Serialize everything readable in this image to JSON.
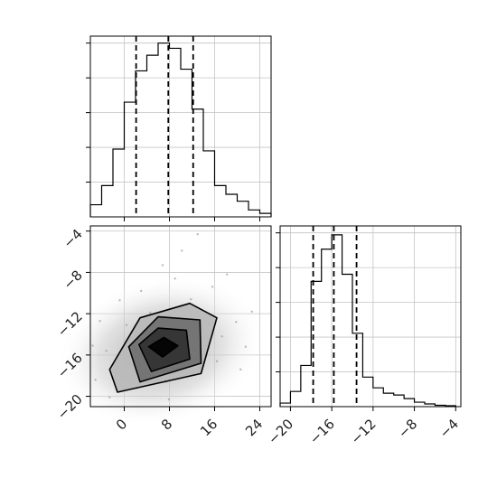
{
  "chart_data": [
    {
      "type": "histogram",
      "panel": "top-left",
      "bin_edges": [
        -6,
        -4,
        -2,
        0,
        2,
        4,
        6,
        8,
        10,
        12,
        14,
        16,
        18,
        20,
        22,
        24,
        26
      ],
      "counts": [
        0.7,
        1.8,
        3.9,
        6.6,
        8.4,
        9.3,
        10.0,
        9.7,
        8.5,
        6.2,
        3.8,
        1.8,
        1.3,
        0.9,
        0.4,
        0.2
      ],
      "quantile_lines": [
        2.1,
        7.8,
        12.2
      ],
      "xlim": [
        -6,
        26
      ],
      "ylim": [
        0,
        10.4
      ],
      "grid": true,
      "y_tick_labels_shown": false
    },
    {
      "type": "histogram",
      "panel": "bottom-right",
      "bin_edges": [
        -21,
        -20,
        -19,
        -18,
        -17,
        -16,
        -15,
        -14,
        -13,
        -12,
        -11,
        -10,
        -9,
        -8,
        -7,
        -6,
        -5,
        -4
      ],
      "counts": [
        0.4,
        1.7,
        4.6,
        14.0,
        17.6,
        19.2,
        14.8,
        8.2,
        3.3,
        2.1,
        1.5,
        1.3,
        0.9,
        0.5,
        0.3,
        0.15,
        0.1
      ],
      "quantile_lines": [
        -17.8,
        -15.8,
        -13.6
      ],
      "xlim": [
        -21,
        -3.5
      ],
      "ylim": [
        0,
        20.2
      ],
      "grid": true,
      "x_ticks": [
        -20,
        -16,
        -12,
        -8,
        -4
      ],
      "x_tick_labels": [
        "−20",
        "−16",
        "−12",
        "−8",
        "−4"
      ],
      "y_tick_labels_shown": false
    },
    {
      "type": "scatter",
      "panel": "bottom-left",
      "style": "2d density scatter with filled contours",
      "center": [
        6.5,
        -15.6
      ],
      "spread": {
        "x_sd": 5.5,
        "y_sd": 2.1,
        "correlation": 0.45
      },
      "points": [
        [
          6.2,
          -15.3
        ],
        [
          8.1,
          -14.9
        ],
        [
          3.4,
          -16.2
        ],
        [
          10.5,
          -14.1
        ],
        [
          1.0,
          -16.8
        ],
        [
          12.7,
          -13.6
        ],
        [
          -1.4,
          -17.3
        ],
        [
          14.9,
          -13.0
        ],
        [
          5.0,
          -17.5
        ],
        [
          9.7,
          -12.4
        ],
        [
          -3.2,
          -15.6
        ],
        [
          17.3,
          -14.2
        ],
        [
          7.4,
          -18.6
        ],
        [
          4.6,
          -11.9
        ],
        [
          19.8,
          -12.8
        ],
        [
          -5.1,
          -18.4
        ],
        [
          11.8,
          -10.6
        ],
        [
          2.2,
          -19.2
        ],
        [
          21.5,
          -15.2
        ],
        [
          0.4,
          -13.1
        ],
        [
          15.6,
          -9.4
        ],
        [
          -2.6,
          -20.1
        ],
        [
          9.0,
          -8.6
        ],
        [
          13.4,
          -17.2
        ],
        [
          22.6,
          -11.8
        ],
        [
          6.8,
          -7.3
        ],
        [
          -4.3,
          -12.7
        ],
        [
          18.2,
          -8.2
        ],
        [
          10.2,
          -5.9
        ],
        [
          3.0,
          -9.8
        ],
        [
          16.4,
          -16.6
        ],
        [
          -0.8,
          -10.7
        ],
        [
          13.0,
          -4.3
        ],
        [
          20.6,
          -17.4
        ],
        [
          7.9,
          -20.3
        ],
        [
          -5.6,
          -15.1
        ]
      ],
      "contours": [
        {
          "level": 1,
          "rings": [
            [
              6.8,
              -16.2
            ],
            [
              9.5,
              -15.1
            ],
            [
              7.0,
              -14.3
            ],
            [
              4.3,
              -15.2
            ],
            [
              6.8,
              -16.2
            ]
          ],
          "fill": "#000000"
        },
        {
          "level": 2,
          "rings": [
            [
              4.8,
              -17.6
            ],
            [
              11.6,
              -16.4
            ],
            [
              11.0,
              -13.6
            ],
            [
              6.0,
              -13.4
            ],
            [
              2.6,
              -15.0
            ],
            [
              4.8,
              -17.6
            ]
          ],
          "fill": "#303030"
        },
        {
          "level": 3,
          "rings": [
            [
              2.8,
              -18.6
            ],
            [
              13.6,
              -16.8
            ],
            [
              13.4,
              -12.6
            ],
            [
              6.0,
              -12.3
            ],
            [
              0.8,
              -15.2
            ],
            [
              2.8,
              -18.6
            ]
          ],
          "fill": "#6e6e6e"
        },
        {
          "level": 4,
          "rings": [
            [
              -1.2,
              -19.6
            ],
            [
              13.6,
              -17.8
            ],
            [
              16.4,
              -12.4
            ],
            [
              11.6,
              -11.0
            ],
            [
              2.8,
              -12.4
            ],
            [
              -2.6,
              -17.4
            ],
            [
              -1.2,
              -19.6
            ]
          ],
          "fill": "#b8b8b8"
        }
      ],
      "xlim": [
        -6,
        26
      ],
      "ylim": [
        -21,
        -3.5
      ],
      "grid": true,
      "x_ticks": [
        0,
        8,
        16,
        24
      ],
      "x_tick_labels": [
        "0",
        "8",
        "16",
        "24"
      ],
      "y_ticks": [
        -4,
        -8,
        -12,
        -16,
        -20
      ],
      "y_tick_labels": [
        "−4",
        "−8",
        "−12",
        "−16",
        "−20"
      ]
    }
  ]
}
